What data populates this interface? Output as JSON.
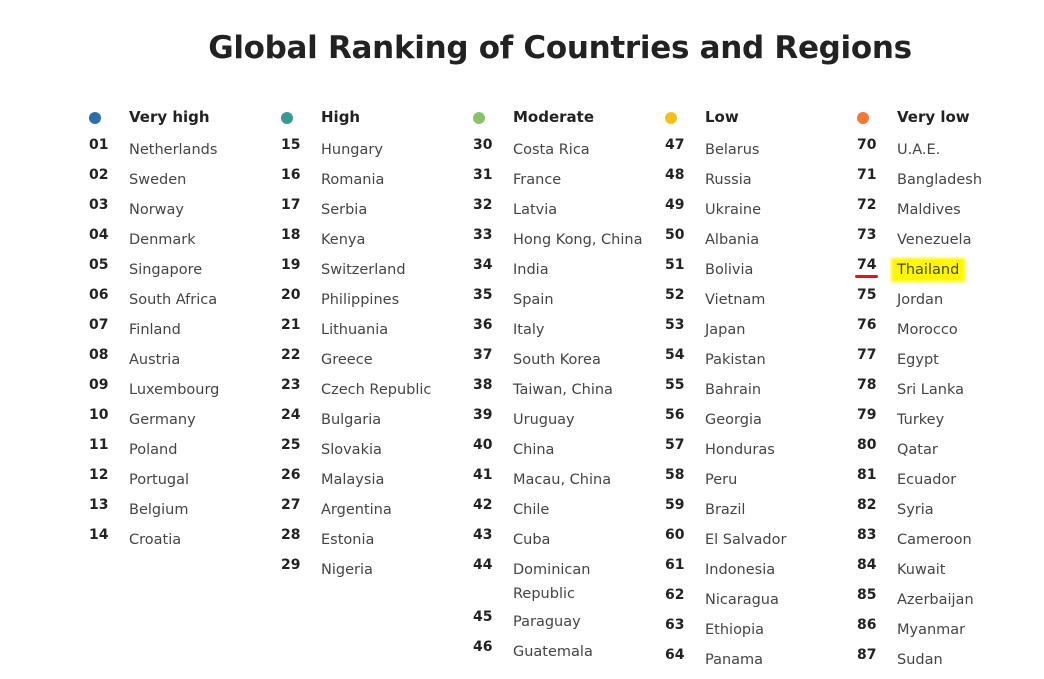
{
  "title": "Global Ranking of Countries and Regions",
  "columns": [
    {
      "heading": "Very high",
      "color": "#2e6fa6",
      "rows": [
        {
          "rank": "01",
          "name": "Netherlands"
        },
        {
          "rank": "02",
          "name": "Sweden"
        },
        {
          "rank": "03",
          "name": "Norway"
        },
        {
          "rank": "04",
          "name": "Denmark"
        },
        {
          "rank": "05",
          "name": "Singapore"
        },
        {
          "rank": "06",
          "name": "South Africa"
        },
        {
          "rank": "07",
          "name": "Finland"
        },
        {
          "rank": "08",
          "name": "Austria"
        },
        {
          "rank": "09",
          "name": "Luxembourg"
        },
        {
          "rank": "10",
          "name": "Germany"
        },
        {
          "rank": "11",
          "name": "Poland"
        },
        {
          "rank": "12",
          "name": "Portugal"
        },
        {
          "rank": "13",
          "name": "Belgium"
        },
        {
          "rank": "14",
          "name": "Croatia"
        }
      ]
    },
    {
      "heading": "High",
      "color": "#3a9a91",
      "rows": [
        {
          "rank": "15",
          "name": "Hungary"
        },
        {
          "rank": "16",
          "name": "Romania"
        },
        {
          "rank": "17",
          "name": "Serbia"
        },
        {
          "rank": "18",
          "name": "Kenya"
        },
        {
          "rank": "19",
          "name": "Switzerland"
        },
        {
          "rank": "20",
          "name": "Philippines"
        },
        {
          "rank": "21",
          "name": "Lithuania"
        },
        {
          "rank": "22",
          "name": "Greece"
        },
        {
          "rank": "23",
          "name": "Czech Republic"
        },
        {
          "rank": "24",
          "name": "Bulgaria"
        },
        {
          "rank": "25",
          "name": "Slovakia"
        },
        {
          "rank": "26",
          "name": "Malaysia"
        },
        {
          "rank": "27",
          "name": "Argentina"
        },
        {
          "rank": "28",
          "name": "Estonia"
        },
        {
          "rank": "29",
          "name": "Nigeria"
        }
      ]
    },
    {
      "heading": "Moderate",
      "color": "#8cc06b",
      "rows": [
        {
          "rank": "30",
          "name": "Costa Rica"
        },
        {
          "rank": "31",
          "name": "France"
        },
        {
          "rank": "32",
          "name": "Latvia"
        },
        {
          "rank": "33",
          "name": "Hong Kong, China"
        },
        {
          "rank": "34",
          "name": "India"
        },
        {
          "rank": "35",
          "name": "Spain"
        },
        {
          "rank": "36",
          "name": "Italy"
        },
        {
          "rank": "37",
          "name": "South Korea"
        },
        {
          "rank": "38",
          "name": "Taiwan, China"
        },
        {
          "rank": "39",
          "name": "Uruguay"
        },
        {
          "rank": "40",
          "name": "China"
        },
        {
          "rank": "41",
          "name": "Macau, China"
        },
        {
          "rank": "42",
          "name": "Chile"
        },
        {
          "rank": "43",
          "name": "Cuba"
        },
        {
          "rank": "44",
          "name": "Dominican Republic"
        },
        {
          "rank": "45",
          "name": "Paraguay"
        },
        {
          "rank": "46",
          "name": "Guatemala"
        }
      ]
    },
    {
      "heading": "Low",
      "color": "#f2c020",
      "rows": [
        {
          "rank": "47",
          "name": "Belarus"
        },
        {
          "rank": "48",
          "name": "Russia"
        },
        {
          "rank": "49",
          "name": "Ukraine"
        },
        {
          "rank": "50",
          "name": "Albania"
        },
        {
          "rank": "51",
          "name": "Bolivia"
        },
        {
          "rank": "52",
          "name": "Vietnam"
        },
        {
          "rank": "53",
          "name": "Japan"
        },
        {
          "rank": "54",
          "name": "Pakistan"
        },
        {
          "rank": "55",
          "name": "Bahrain"
        },
        {
          "rank": "56",
          "name": "Georgia"
        },
        {
          "rank": "57",
          "name": "Honduras"
        },
        {
          "rank": "58",
          "name": "Peru"
        },
        {
          "rank": "59",
          "name": "Brazil"
        },
        {
          "rank": "60",
          "name": "El Salvador"
        },
        {
          "rank": "61",
          "name": "Indonesia"
        },
        {
          "rank": "62",
          "name": "Nicaragua"
        },
        {
          "rank": "63",
          "name": "Ethiopia"
        },
        {
          "rank": "64",
          "name": "Panama"
        }
      ]
    },
    {
      "heading": "Very low",
      "color": "#f07a3a",
      "rows": [
        {
          "rank": "70",
          "name": "U.A.E."
        },
        {
          "rank": "71",
          "name": "Bangladesh"
        },
        {
          "rank": "72",
          "name": "Maldives"
        },
        {
          "rank": "73",
          "name": "Venezuela"
        },
        {
          "rank": "74",
          "name": "Thailand",
          "highlighted": true
        },
        {
          "rank": "75",
          "name": "Jordan"
        },
        {
          "rank": "76",
          "name": "Morocco"
        },
        {
          "rank": "77",
          "name": "Egypt"
        },
        {
          "rank": "78",
          "name": "Sri Lanka"
        },
        {
          "rank": "79",
          "name": "Turkey"
        },
        {
          "rank": "80",
          "name": "Qatar"
        },
        {
          "rank": "81",
          "name": "Ecuador"
        },
        {
          "rank": "82",
          "name": "Syria"
        },
        {
          "rank": "83",
          "name": "Cameroon"
        },
        {
          "rank": "84",
          "name": "Kuwait"
        },
        {
          "rank": "85",
          "name": "Azerbaijan"
        },
        {
          "rank": "86",
          "name": "Myanmar"
        },
        {
          "rank": "87",
          "name": "Sudan"
        }
      ]
    }
  ],
  "highlight_color": "#fff700",
  "underline_color": "#e0151b"
}
